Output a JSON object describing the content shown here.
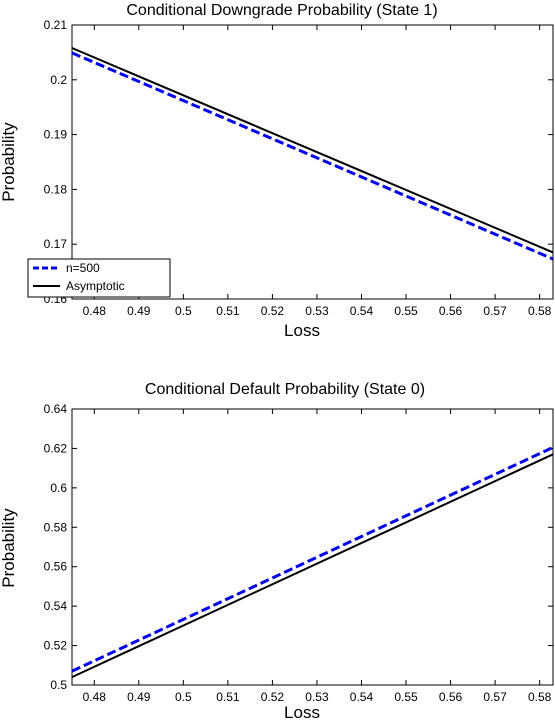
{
  "chart_data": [
    {
      "type": "line",
      "title": "Conditional Downgrade Probability (State 1)",
      "xlabel": "Loss",
      "ylabel": "Probability",
      "xlim": [
        0.475,
        0.583
      ],
      "ylim": [
        0.16,
        0.21
      ],
      "xticks": [
        0.48,
        0.49,
        0.5,
        0.51,
        0.52,
        0.53,
        0.54,
        0.55,
        0.56,
        0.57,
        0.58
      ],
      "xtick_labels": [
        "0.48",
        "0.49",
        "0.5",
        "0.51",
        "0.52",
        "0.53",
        "0.54",
        "0.55",
        "0.56",
        "0.57",
        "0.58"
      ],
      "yticks": [
        0.16,
        0.17,
        0.18,
        0.19,
        0.2,
        0.21
      ],
      "ytick_labels": [
        "0.16",
        "0.17",
        "0.18",
        "0.19",
        "0.2",
        "0.21"
      ],
      "grid": false,
      "legend_position": "bottom-left",
      "series": [
        {
          "name": "n=500",
          "color": "#0000ff",
          "dash": "dashed",
          "x": [
            0.475,
            0.583
          ],
          "y": [
            0.2049,
            0.1673
          ]
        },
        {
          "name": "Asymptotic",
          "color": "#000000",
          "dash": "solid",
          "x": [
            0.475,
            0.583
          ],
          "y": [
            0.2058,
            0.1685
          ]
        }
      ]
    },
    {
      "type": "line",
      "title": "Conditional Default Probability (State 0)",
      "xlabel": "Loss",
      "ylabel": "Probability",
      "xlim": [
        0.475,
        0.583
      ],
      "ylim": [
        0.5,
        0.64
      ],
      "xticks": [
        0.48,
        0.49,
        0.5,
        0.51,
        0.52,
        0.53,
        0.54,
        0.55,
        0.56,
        0.57,
        0.58
      ],
      "xtick_labels": [
        "0.48",
        "0.49",
        "0.5",
        "0.51",
        "0.52",
        "0.53",
        "0.54",
        "0.55",
        "0.56",
        "0.57",
        "0.58"
      ],
      "yticks": [
        0.5,
        0.52,
        0.54,
        0.56,
        0.58,
        0.6,
        0.62,
        0.64
      ],
      "ytick_labels": [
        "0.5",
        "0.52",
        "0.54",
        "0.56",
        "0.58",
        "0.6",
        "0.62",
        "0.64"
      ],
      "grid": false,
      "series": [
        {
          "color": "#0000ff",
          "dash": "dashed",
          "x": [
            0.475,
            0.583
          ],
          "y": [
            0.507,
            0.6205
          ]
        },
        {
          "color": "#000000",
          "dash": "solid",
          "x": [
            0.475,
            0.583
          ],
          "y": [
            0.504,
            0.617
          ]
        }
      ]
    }
  ]
}
